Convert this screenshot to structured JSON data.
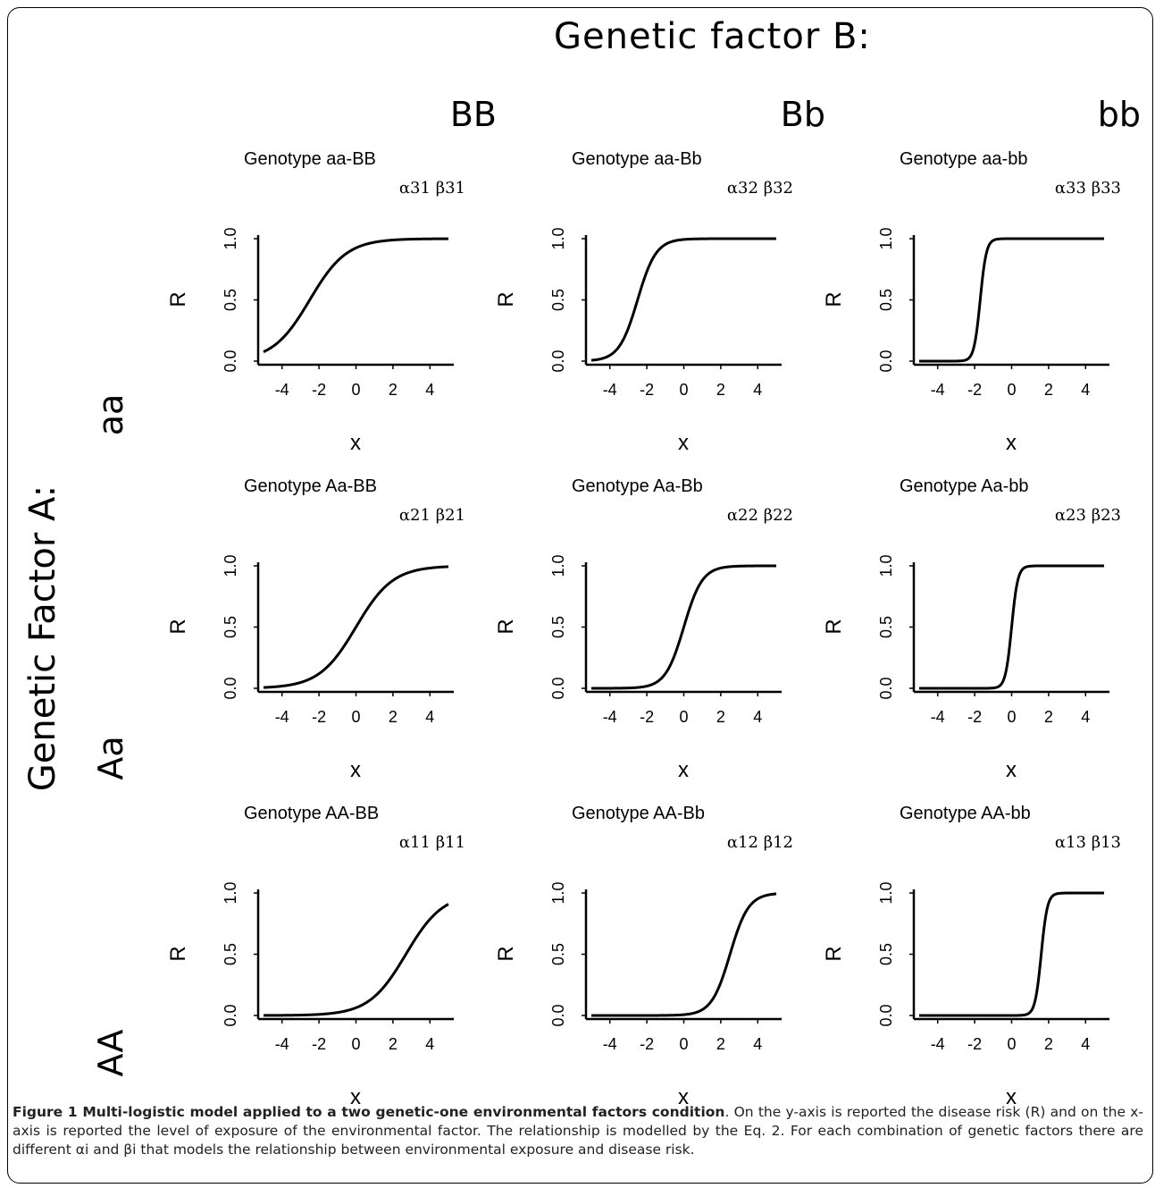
{
  "figure": {
    "title_top": "Genetic factor B:",
    "col_headers": [
      "BB",
      "Bb",
      "bb"
    ],
    "title_side": "Genetic Factor A:",
    "row_headers": [
      "aa",
      "Aa",
      "AA"
    ]
  },
  "caption": {
    "label": "Figure 1 Multi-logistic model applied to a two genetic-one environmental factors condition",
    "text": ". On the y-axis is reported the disease risk (R) and on the x-axis is reported the level of exposure of the environmental factor. The relationship is modelled by the Eq. 2. For each combination of genetic factors there are different αi and βi that models the relationship between environmental exposure and disease risk."
  },
  "chart_data": [
    {
      "type": "line",
      "title": "Genotype aa-BB",
      "param": "α31 β31",
      "xlabel": "x",
      "ylabel": "R",
      "xlim": [
        -5,
        5
      ],
      "ylim": [
        0,
        1
      ],
      "xticks": [
        "-4",
        "-2",
        "0",
        "2",
        "4"
      ],
      "yticks": [
        "0.0",
        "0.5",
        "1.0"
      ],
      "logistic": {
        "x0": -2.5,
        "k": 1.0
      }
    },
    {
      "type": "line",
      "title": "Genotype aa-Bb",
      "param": "α32 β32",
      "xlabel": "x",
      "ylabel": "R",
      "xlim": [
        -5,
        5
      ],
      "ylim": [
        0,
        1
      ],
      "xticks": [
        "-4",
        "-2",
        "0",
        "2",
        "4"
      ],
      "yticks": [
        "0.0",
        "0.5",
        "1.0"
      ],
      "logistic": {
        "x0": -2.5,
        "k": 2.0
      }
    },
    {
      "type": "line",
      "title": "Genotype aa-bb",
      "param": "α33 β33",
      "xlabel": "x",
      "ylabel": "R",
      "xlim": [
        -5,
        5
      ],
      "ylim": [
        0,
        1
      ],
      "xticks": [
        "-4",
        "-2",
        "0",
        "2",
        "4"
      ],
      "yticks": [
        "0.0",
        "0.5",
        "1.0"
      ],
      "logistic": {
        "x0": -1.7,
        "k": 6.0
      }
    },
    {
      "type": "line",
      "title": "Genotype Aa-BB",
      "param": "α21 β21",
      "xlabel": "x",
      "ylabel": "R",
      "xlim": [
        -5,
        5
      ],
      "ylim": [
        0,
        1
      ],
      "xticks": [
        "-4",
        "-2",
        "0",
        "2",
        "4"
      ],
      "yticks": [
        "0.0",
        "0.5",
        "1.0"
      ],
      "logistic": {
        "x0": 0.0,
        "k": 1.0
      }
    },
    {
      "type": "line",
      "title": "Genotype Aa-Bb",
      "param": "α22 β22",
      "xlabel": "x",
      "ylabel": "R",
      "xlim": [
        -5,
        5
      ],
      "ylim": [
        0,
        1
      ],
      "xticks": [
        "-4",
        "-2",
        "0",
        "2",
        "4"
      ],
      "yticks": [
        "0.0",
        "0.5",
        "1.0"
      ],
      "logistic": {
        "x0": 0.0,
        "k": 2.0
      }
    },
    {
      "type": "line",
      "title": "Genotype Aa-bb",
      "param": "α23 β23",
      "xlabel": "x",
      "ylabel": "R",
      "xlim": [
        -5,
        5
      ],
      "ylim": [
        0,
        1
      ],
      "xticks": [
        "-4",
        "-2",
        "0",
        "2",
        "4"
      ],
      "yticks": [
        "0.0",
        "0.5",
        "1.0"
      ],
      "logistic": {
        "x0": 0.0,
        "k": 6.0
      }
    },
    {
      "type": "line",
      "title": "Genotype AA-BB",
      "param": "α11 β11",
      "xlabel": "x",
      "ylabel": "R",
      "xlim": [
        -5,
        5
      ],
      "ylim": [
        0,
        1
      ],
      "xticks": [
        "-4",
        "-2",
        "0",
        "2",
        "4"
      ],
      "yticks": [
        "0.0",
        "0.5",
        "1.0"
      ],
      "logistic": {
        "x0": 2.7,
        "k": 1.0
      }
    },
    {
      "type": "line",
      "title": "Genotype AA-Bb",
      "param": "α12 β12",
      "xlabel": "x",
      "ylabel": "R",
      "xlim": [
        -5,
        5
      ],
      "ylim": [
        0,
        1
      ],
      "xticks": [
        "-4",
        "-2",
        "0",
        "2",
        "4"
      ],
      "yticks": [
        "0.0",
        "0.5",
        "1.0"
      ],
      "logistic": {
        "x0": 2.5,
        "k": 2.0
      }
    },
    {
      "type": "line",
      "title": "Genotype AA-bb",
      "param": "α13 β13",
      "xlabel": "x",
      "ylabel": "R",
      "xlim": [
        -5,
        5
      ],
      "ylim": [
        0,
        1
      ],
      "xticks": [
        "-4",
        "-2",
        "0",
        "2",
        "4"
      ],
      "yticks": [
        "0.0",
        "0.5",
        "1.0"
      ],
      "logistic": {
        "x0": 1.6,
        "k": 6.0
      }
    }
  ]
}
